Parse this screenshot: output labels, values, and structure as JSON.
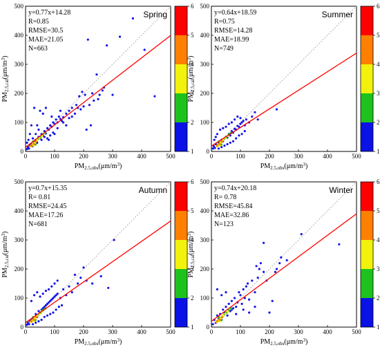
{
  "axis": {
    "x_label_main": "PM",
    "x_label_sub": "2.5,obs",
    "x_label_unit": "(μm/m",
    "x_label_sup": "3",
    "x_label_close": ")",
    "y_label_main": "PM",
    "y_label_sub": "2.5,cal",
    "y_label_unit": "(μm/m",
    "y_label_sup": "3",
    "y_label_close": ")",
    "ticks": [
      0,
      100,
      200,
      300,
      400,
      500
    ],
    "lim": [
      0,
      500
    ]
  },
  "colorbar": {
    "ticks": [
      "1",
      "2",
      "3",
      "4",
      "5",
      "6"
    ],
    "colors": [
      "#0a12e6",
      "#1dc21d",
      "#f2f20c",
      "#ff8000",
      "#ff0000"
    ]
  },
  "colors": {
    "fit_line": "#ff0000",
    "reference_line": "#a0a0a0",
    "point": "#1515e6"
  },
  "chart_data": [
    {
      "type": "scatter",
      "season": "Spring",
      "stats": [
        "y=0.77x+14.28",
        "R=0.85",
        "RMSE=30.5",
        "MAE=21.05",
        "N=663"
      ],
      "fit": {
        "slope": 0.77,
        "intercept": 14.28
      },
      "xlim": [
        0,
        500
      ],
      "ylim": [
        0,
        500
      ],
      "points": [
        [
          5,
          8
        ],
        [
          8,
          15
        ],
        [
          12,
          10
        ],
        [
          15,
          20
        ],
        [
          20,
          25
        ],
        [
          25,
          18
        ],
        [
          30,
          35
        ],
        [
          35,
          40
        ],
        [
          40,
          30
        ],
        [
          45,
          50
        ],
        [
          50,
          45
        ],
        [
          55,
          60
        ],
        [
          60,
          55
        ],
        [
          65,
          70
        ],
        [
          70,
          62
        ],
        [
          75,
          80
        ],
        [
          80,
          75
        ],
        [
          85,
          90
        ],
        [
          90,
          85
        ],
        [
          95,
          100
        ],
        [
          100,
          95
        ],
        [
          105,
          110
        ],
        [
          110,
          100
        ],
        [
          115,
          120
        ],
        [
          120,
          112
        ],
        [
          125,
          105
        ],
        [
          130,
          118
        ],
        [
          140,
          130
        ],
        [
          150,
          140
        ],
        [
          160,
          150
        ],
        [
          175,
          160
        ],
        [
          185,
          190
        ],
        [
          195,
          205
        ],
        [
          205,
          195
        ],
        [
          215,
          385
        ],
        [
          220,
          160
        ],
        [
          230,
          200
        ],
        [
          245,
          265
        ],
        [
          255,
          195
        ],
        [
          265,
          210
        ],
        [
          280,
          365
        ],
        [
          300,
          195
        ],
        [
          325,
          395
        ],
        [
          370,
          458
        ],
        [
          410,
          350
        ],
        [
          445,
          190
        ],
        [
          210,
          75
        ],
        [
          225,
          90
        ],
        [
          30,
          150
        ],
        [
          50,
          140
        ],
        [
          60,
          130
        ],
        [
          70,
          150
        ],
        [
          20,
          90
        ],
        [
          10,
          40
        ],
        [
          40,
          90
        ],
        [
          80,
          40
        ],
        [
          100,
          60
        ],
        [
          140,
          90
        ],
        [
          160,
          120
        ],
        [
          180,
          150
        ],
        [
          120,
          140
        ],
        [
          90,
          120
        ],
        [
          15,
          60
        ],
        [
          5,
          30
        ],
        [
          25,
          45
        ],
        [
          35,
          60
        ],
        [
          45,
          75
        ],
        [
          55,
          40
        ],
        [
          65,
          50
        ],
        [
          75,
          45
        ],
        [
          85,
          55
        ],
        [
          95,
          65
        ],
        [
          110,
          80
        ],
        [
          130,
          100
        ],
        [
          150,
          115
        ],
        [
          170,
          130
        ],
        [
          190,
          145
        ],
        [
          200,
          155
        ],
        [
          235,
          175
        ],
        [
          250,
          180
        ],
        [
          270,
          220
        ]
      ]
    },
    {
      "type": "scatter",
      "season": "Summer",
      "stats": [
        "y=0.64x+18.59",
        "R=0.75",
        "RMSE=14.28",
        "MAE=18.99",
        "N=749"
      ],
      "fit": {
        "slope": 0.64,
        "intercept": 18.59
      },
      "xlim": [
        0,
        500
      ],
      "ylim": [
        0,
        500
      ],
      "points": [
        [
          5,
          10
        ],
        [
          8,
          18
        ],
        [
          12,
          12
        ],
        [
          15,
          25
        ],
        [
          20,
          22
        ],
        [
          25,
          30
        ],
        [
          30,
          28
        ],
        [
          35,
          40
        ],
        [
          40,
          35
        ],
        [
          45,
          45
        ],
        [
          50,
          50
        ],
        [
          55,
          48
        ],
        [
          60,
          60
        ],
        [
          65,
          55
        ],
        [
          70,
          70
        ],
        [
          75,
          65
        ],
        [
          80,
          78
        ],
        [
          85,
          75
        ],
        [
          90,
          88
        ],
        [
          95,
          85
        ],
        [
          100,
          95
        ],
        [
          105,
          100
        ],
        [
          110,
          105
        ],
        [
          115,
          90
        ],
        [
          120,
          110
        ],
        [
          130,
          100
        ],
        [
          140,
          120
        ],
        [
          150,
          135
        ],
        [
          160,
          110
        ],
        [
          225,
          145
        ],
        [
          20,
          60
        ],
        [
          30,
          75
        ],
        [
          40,
          80
        ],
        [
          50,
          85
        ],
        [
          60,
          95
        ],
        [
          70,
          100
        ],
        [
          80,
          110
        ],
        [
          90,
          120
        ],
        [
          100,
          115
        ],
        [
          25,
          10
        ],
        [
          35,
          15
        ],
        [
          45,
          20
        ],
        [
          55,
          25
        ],
        [
          65,
          30
        ],
        [
          75,
          35
        ],
        [
          85,
          45
        ],
        [
          95,
          55
        ],
        [
          105,
          60
        ],
        [
          115,
          70
        ],
        [
          10,
          40
        ],
        [
          15,
          50
        ]
      ]
    },
    {
      "type": "scatter",
      "season": "Autumn",
      "stats": [
        "y=0.7x+15.35",
        "R= 0.81",
        "RMSE=24.45",
        "MAE=17.26",
        "N=681"
      ],
      "fit": {
        "slope": 0.7,
        "intercept": 15.35
      },
      "xlim": [
        0,
        500
      ],
      "ylim": [
        0,
        500
      ],
      "points": [
        [
          5,
          8
        ],
        [
          8,
          15
        ],
        [
          12,
          10
        ],
        [
          15,
          20
        ],
        [
          20,
          25
        ],
        [
          25,
          30
        ],
        [
          30,
          28
        ],
        [
          35,
          45
        ],
        [
          40,
          35
        ],
        [
          45,
          55
        ],
        [
          50,
          50
        ],
        [
          55,
          60
        ],
        [
          60,
          65
        ],
        [
          65,
          70
        ],
        [
          70,
          75
        ],
        [
          75,
          80
        ],
        [
          80,
          85
        ],
        [
          85,
          90
        ],
        [
          90,
          95
        ],
        [
          95,
          100
        ],
        [
          100,
          105
        ],
        [
          105,
          110
        ],
        [
          110,
          115
        ],
        [
          120,
          100
        ],
        [
          130,
          130
        ],
        [
          140,
          110
        ],
        [
          150,
          140
        ],
        [
          160,
          120
        ],
        [
          170,
          180
        ],
        [
          180,
          150
        ],
        [
          190,
          170
        ],
        [
          200,
          205
        ],
        [
          210,
          160
        ],
        [
          230,
          150
        ],
        [
          260,
          175
        ],
        [
          285,
          135
        ],
        [
          305,
          300
        ],
        [
          20,
          90
        ],
        [
          30,
          110
        ],
        [
          40,
          120
        ],
        [
          50,
          105
        ],
        [
          60,
          115
        ],
        [
          70,
          125
        ],
        [
          80,
          130
        ],
        [
          90,
          140
        ],
        [
          100,
          150
        ],
        [
          110,
          160
        ],
        [
          25,
          10
        ],
        [
          35,
          15
        ],
        [
          45,
          20
        ],
        [
          55,
          25
        ],
        [
          65,
          35
        ],
        [
          75,
          40
        ],
        [
          85,
          45
        ],
        [
          95,
          50
        ],
        [
          105,
          60
        ],
        [
          115,
          70
        ],
        [
          125,
          75
        ]
      ]
    },
    {
      "type": "scatter",
      "season": "Winter",
      "stats": [
        "y=0.74x+20.18",
        "R= 0.78",
        "RMSE=45.84",
        "MAE=32.86",
        "N=123"
      ],
      "fit": {
        "slope": 0.74,
        "intercept": 20.18
      },
      "xlim": [
        0,
        500
      ],
      "ylim": [
        0,
        500
      ],
      "points": [
        [
          5,
          10
        ],
        [
          10,
          25
        ],
        [
          15,
          15
        ],
        [
          20,
          40
        ],
        [
          25,
          30
        ],
        [
          30,
          45
        ],
        [
          35,
          25
        ],
        [
          40,
          60
        ],
        [
          45,
          50
        ],
        [
          50,
          70
        ],
        [
          55,
          40
        ],
        [
          60,
          80
        ],
        [
          65,
          55
        ],
        [
          70,
          90
        ],
        [
          75,
          65
        ],
        [
          80,
          100
        ],
        [
          85,
          70
        ],
        [
          90,
          85
        ],
        [
          95,
          120
        ],
        [
          100,
          110
        ],
        [
          105,
          80
        ],
        [
          110,
          130
        ],
        [
          115,
          100
        ],
        [
          120,
          140
        ],
        [
          125,
          150
        ],
        [
          130,
          95
        ],
        [
          140,
          160
        ],
        [
          150,
          120
        ],
        [
          155,
          210
        ],
        [
          160,
          170
        ],
        [
          165,
          200
        ],
        [
          170,
          220
        ],
        [
          180,
          190
        ],
        [
          190,
          160
        ],
        [
          200,
          50
        ],
        [
          210,
          90
        ],
        [
          220,
          190
        ],
        [
          225,
          200
        ],
        [
          235,
          220
        ],
        [
          240,
          240
        ],
        [
          180,
          290
        ],
        [
          260,
          230
        ],
        [
          310,
          320
        ],
        [
          440,
          285
        ],
        [
          20,
          130
        ],
        [
          35,
          110
        ],
        [
          50,
          120
        ],
        [
          70,
          60
        ],
        [
          85,
          45
        ],
        [
          110,
          60
        ],
        [
          130,
          50
        ],
        [
          150,
          70
        ]
      ]
    }
  ]
}
